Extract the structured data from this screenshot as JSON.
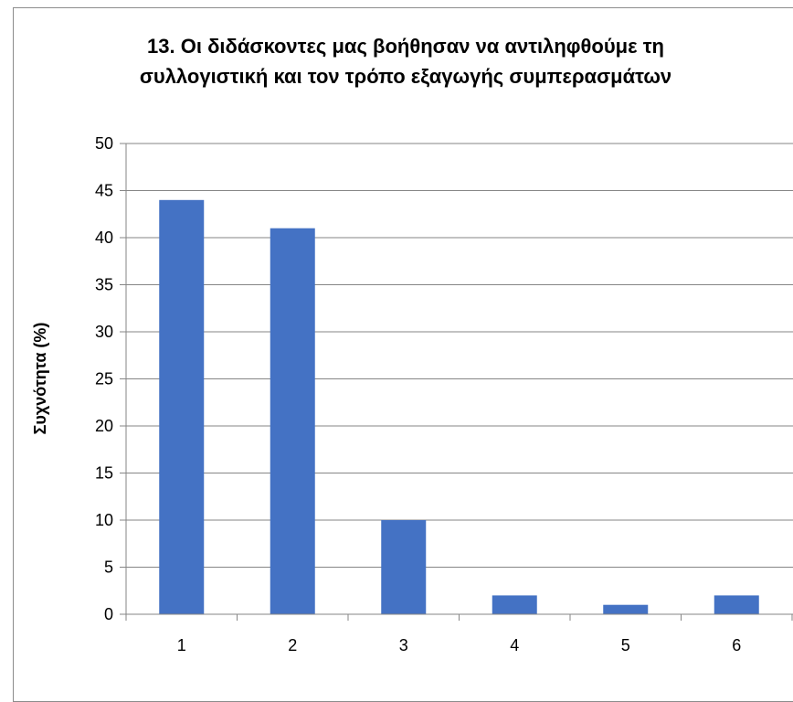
{
  "chart_data": {
    "type": "bar",
    "title_lines": [
      "13. Οι διδάσκοντες μας βοήθησαν να αντιληφθούμε τη",
      "συλλογιστική και τον τρόπο εξαγωγής συμπερασμάτων"
    ],
    "xlabel": "",
    "ylabel": "Συχνότητα (%)",
    "categories": [
      "1",
      "2",
      "3",
      "4",
      "5",
      "6"
    ],
    "values": [
      44,
      41,
      10,
      2,
      1,
      2
    ],
    "ylim": [
      0,
      50
    ],
    "yticks": [
      0,
      5,
      10,
      15,
      20,
      25,
      30,
      35,
      40,
      45,
      50
    ],
    "grid": true,
    "legend": "none",
    "bar_color": "#4472C4",
    "grid_color": "#868686"
  }
}
